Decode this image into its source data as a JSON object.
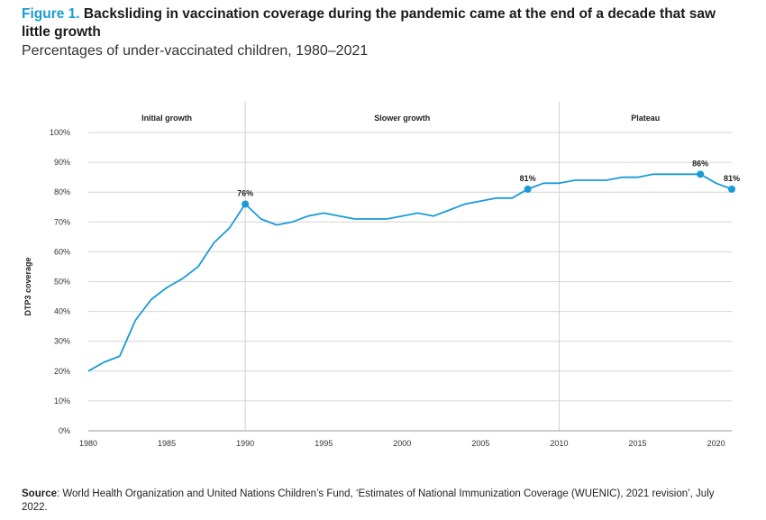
{
  "header": {
    "figure_label": "Figure 1.",
    "title": "Backsliding in vaccination coverage during the pandemic came at the end of a decade that saw little growth",
    "subtitle": "Percentages of under-vaccinated children, 1980–2021"
  },
  "source": {
    "label": "Source",
    "text": ": World Health Organization and United Nations Children’s Fund, ‘Estimates of National Immunization Coverage (WUENIC), 2021 revision’, July 2022."
  },
  "chart_data": {
    "type": "line",
    "title": "",
    "ylabel": "DTP3 coverage",
    "xlabel": "",
    "xlim": [
      1980,
      2021
    ],
    "ylim": [
      0,
      100
    ],
    "x_ticks": [
      1980,
      1985,
      1990,
      1995,
      2000,
      2005,
      2010,
      2015,
      2020
    ],
    "y_ticks": [
      "0%",
      "10%",
      "20%",
      "30%",
      "40%",
      "50%",
      "60%",
      "70%",
      "80%",
      "90%",
      "100%"
    ],
    "grid": "horizontal",
    "line_color": "#1a9ad6",
    "periods": [
      {
        "label": "Initial growth",
        "from": 1980,
        "to": 1990
      },
      {
        "label": "Slower growth",
        "from": 1990,
        "to": 2010
      },
      {
        "label": "Plateau",
        "from": 2010,
        "to": 2021
      }
    ],
    "series": [
      {
        "x": [
          1980,
          1981,
          1982,
          1983,
          1984,
          1985,
          1986,
          1987,
          1988,
          1989,
          1990,
          1991,
          1992,
          1993,
          1994,
          1995,
          1996,
          1997,
          1998,
          1999,
          2000,
          2001,
          2002,
          2003,
          2004,
          2005,
          2006,
          2007,
          2008,
          2009,
          2010,
          2011,
          2012,
          2013,
          2014,
          2015,
          2016,
          2017,
          2018,
          2019,
          2020,
          2021
        ],
        "values": [
          20,
          23,
          25,
          37,
          44,
          48,
          51,
          55,
          63,
          68,
          76,
          71,
          69,
          70,
          72,
          73,
          72,
          71,
          71,
          71,
          72,
          73,
          72,
          74,
          76,
          77,
          78,
          78,
          81,
          83,
          83,
          84,
          84,
          84,
          85,
          85,
          86,
          86,
          86,
          86,
          83,
          81
        ]
      }
    ],
    "annotations": [
      {
        "x": 1990,
        "y": 76,
        "label": "76%"
      },
      {
        "x": 2008,
        "y": 81,
        "label": "81%"
      },
      {
        "x": 2019,
        "y": 86,
        "label": "86%"
      },
      {
        "x": 2021,
        "y": 81,
        "label": "81%"
      }
    ]
  }
}
